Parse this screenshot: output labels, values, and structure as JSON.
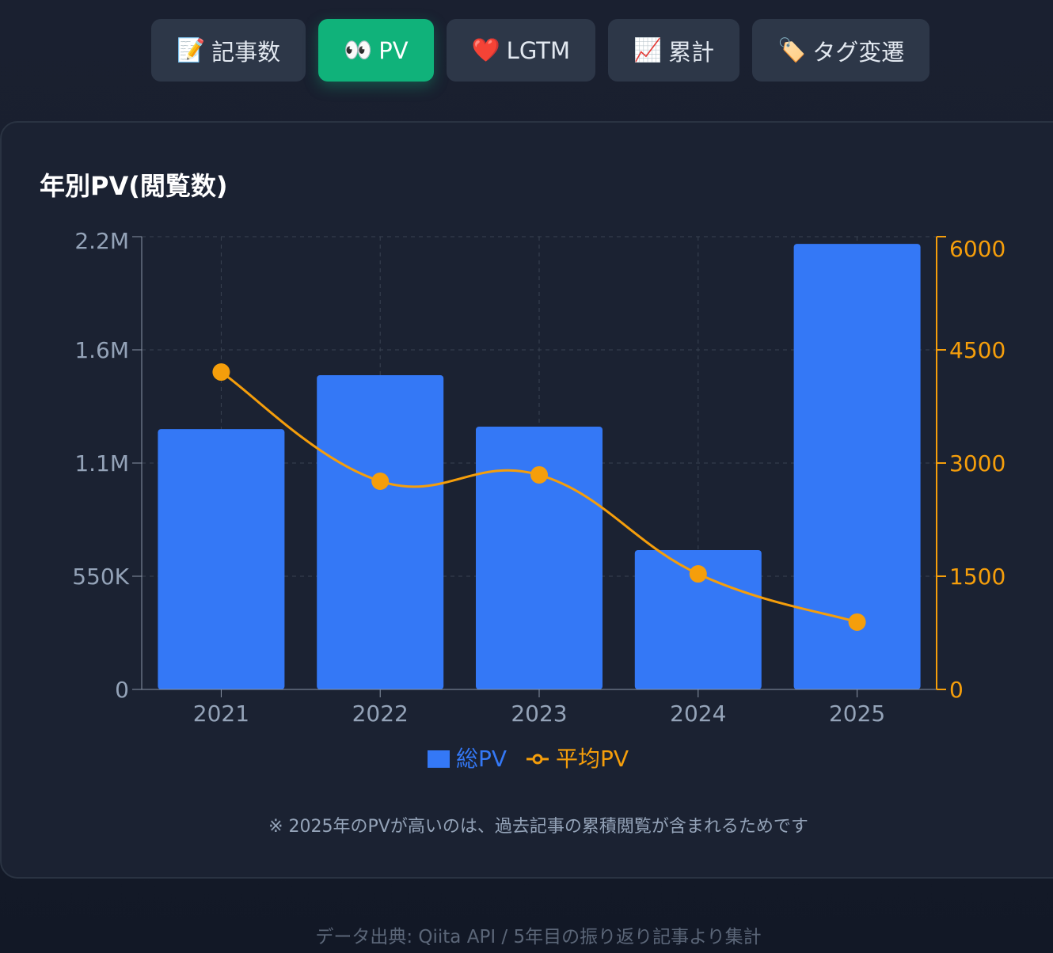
{
  "tabs": [
    {
      "icon": "📝",
      "label": "記事数",
      "active": false
    },
    {
      "icon": "👀",
      "label": "PV",
      "active": true
    },
    {
      "icon": "❤️",
      "label": "LGTM",
      "active": false
    },
    {
      "icon": "📈",
      "label": "累計",
      "active": false
    },
    {
      "icon": "🏷️",
      "label": "タグ変遷",
      "active": false
    }
  ],
  "chart_data": {
    "type": "bar",
    "title": "年別PV(閲覧数)",
    "categories": [
      "2021",
      "2022",
      "2023",
      "2024",
      "2025"
    ],
    "series": [
      {
        "name": "総PV",
        "type": "bar",
        "axis": "left",
        "color": "#3478f6",
        "values": [
          1265000,
          1527000,
          1277000,
          677000,
          2165000
        ]
      },
      {
        "name": "平均PV",
        "type": "line",
        "axis": "right",
        "color": "#f59e0b",
        "values": [
          4206,
          2759,
          2843,
          1531,
          892
        ]
      }
    ],
    "y_left": {
      "ylim": [
        0,
        2200000
      ],
      "ticks": [
        0,
        550000,
        1100000,
        1650000,
        2200000
      ],
      "tick_labels": [
        "0",
        "550K",
        "1.1M",
        "1.6M",
        "2.2M"
      ]
    },
    "y_right": {
      "ylim": [
        0,
        6000
      ],
      "ticks": [
        0,
        1500,
        3000,
        4500,
        6000
      ],
      "tick_labels": [
        "0",
        "1500",
        "3000",
        "4500",
        "6000"
      ],
      "color": "#f59e0b"
    },
    "grid": true,
    "legend": "bottom"
  },
  "note": "※ 2025年のPVが高いのは、過去記事の累積閲覧が含まれるためです",
  "source": "データ出典: Qiita API / 5年目の振り返り記事より集計"
}
